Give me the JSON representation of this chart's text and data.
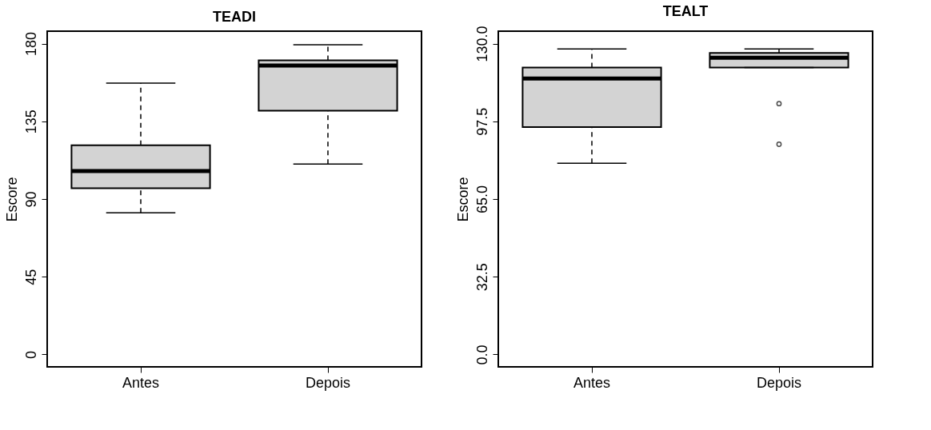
{
  "chart_data": [
    {
      "type": "box",
      "title": "TEADI",
      "ylabel": "Escore",
      "categories": [
        "Antes",
        "Depois"
      ],
      "series": [
        {
          "color": "#d3d3d3",
          "boxes": [
            {
              "low": 82,
              "q1": 96.3,
              "median": 106.2,
              "q3": 121.1,
              "high": 157.1
            },
            {
              "low": 110.2,
              "q1": 141.2,
              "median": 167.3,
              "q3": 170.3,
              "high": 179.3
            }
          ]
        }
      ],
      "ylim": [
        -7.2,
        187.2
      ],
      "yticks": [
        0,
        45,
        90,
        135,
        180
      ],
      "grid": false
    },
    {
      "type": "box",
      "title": "TEALT",
      "ylabel": "Escore",
      "categories": [
        "Antes",
        "Depois"
      ],
      "series": [
        {
          "color": "#d3d3d3",
          "boxes": [
            {
              "low": 80,
              "q1": 95.1,
              "median": 115.4,
              "q3": 120,
              "high": 127.8
            },
            {
              "low": 120,
              "q1": 120,
              "median": 124.1,
              "q3": 126.1,
              "high": 127.8,
              "outliers": [
                104.9,
                87.9
              ]
            }
          ]
        }
      ],
      "ylim": [
        -5.2,
        135.2
      ],
      "yticks": [
        {
          "value": 0,
          "label": "0.0"
        },
        {
          "value": 32.5,
          "label": "32.5"
        },
        {
          "value": 65,
          "label": "65.0"
        },
        {
          "value": 97.5,
          "label": "97.5"
        },
        {
          "value": 130,
          "label": "130.0"
        }
      ],
      "grid": false
    }
  ]
}
